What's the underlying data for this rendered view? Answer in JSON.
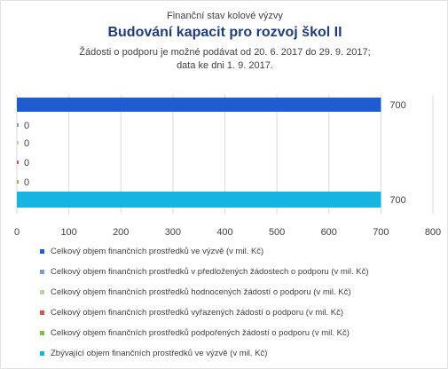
{
  "header": {
    "supratitle": "Finanční stav kolové výzvy",
    "title": "Budování kapacit pro rozvoj škol II",
    "subtitle_line1": "Žádosti o podporu je možné podávat od 20. 6. 2017 do 29. 9. 2017;",
    "subtitle_line2": "data ke dni 1. 9. 2017."
  },
  "chart_data": {
    "type": "bar",
    "orientation": "horizontal",
    "x_ticks": [
      "0",
      "100",
      "200",
      "300",
      "400",
      "500",
      "600",
      "700",
      "800"
    ],
    "xlim": [
      0,
      800
    ],
    "grid": "vertical",
    "legend_position": "bottom",
    "series": [
      {
        "name": "Celkový objem finančních prostředků ve výzvě (v mil. Kč)",
        "value": 700,
        "label": "700",
        "color": "#1f5bd1"
      },
      {
        "name": "Celkový objem finančních prostředků v předložených žádostech o podporu (v mil. Kč)",
        "value": 0,
        "label": "0",
        "color": "#7a9ec9"
      },
      {
        "name": "Celkový objem finančních prostředků hodnocených žádostí o podporu (v mil. Kč)",
        "value": 0,
        "label": "0",
        "color": "#b9d5a0"
      },
      {
        "name": "Celkový objem finančních prostředků vyřazených žádostí o podporu (v mil. Kč)",
        "value": 0,
        "label": "0",
        "color": "#d9534f"
      },
      {
        "name": "Celkový objem finančních prostředků podpořených žádostí o podporu (v mil. Kč)",
        "value": 0,
        "label": "0",
        "color": "#7cc242"
      },
      {
        "name": "Zbývající objem finančních prostředků ve výzvě (v mil. Kč)",
        "value": 700,
        "label": "700",
        "color": "#16b4e0"
      }
    ]
  }
}
